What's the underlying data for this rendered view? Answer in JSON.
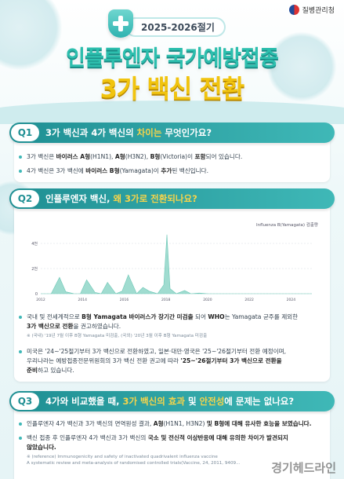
{
  "header": {
    "org": "질병관리청",
    "season": "2025-2026절기",
    "title_line1": "인플루엔자 국가예방접종",
    "title_line2": "3가 백신 전환"
  },
  "q1": {
    "badge": "Q1",
    "q_pre": "3가 백신과 4가 백신의 ",
    "q_hl": "차이는",
    "q_post": " 무엇인가요?",
    "b1_a": "3가 백신은 ",
    "b1_b": "바이러스 A형",
    "b1_c": "(H1N1), ",
    "b1_d": "A형",
    "b1_e": "(H3N2), ",
    "b1_f": "B형",
    "b1_g": "(Victoria)이 ",
    "b1_h": "포함",
    "b1_i": "되어 있습니다.",
    "b2_a": "4가 백신은 3가 백신에 ",
    "b2_b": "바이러스 B형",
    "b2_c": "(Yamagata)이 ",
    "b2_d": "추가",
    "b2_e": "된 백신입니다."
  },
  "q2": {
    "badge": "Q2",
    "q_pre": "인플루엔자 백신, ",
    "q_hl": "왜 3가로 전환되나요?",
    "b1_a": "국내 및 전세계적으로 ",
    "b1_b": "B형 Yamagata 바이러스가 장기간 미검출",
    "b1_c": " 되어 ",
    "b1_d": "WHO",
    "b1_e": "는 Yamagata 균주를 제외한",
    "b1_f": "3가 백신으로 전환",
    "b1_g": "을 권고하였습니다.",
    "note1": "※ (국내) '19년 7월 이후 B형 Yamagata 미검출, (국외) '20년 3월 이후 B형 Yamagata 미검출",
    "b2_line1": "미국은 '24~'25절기부터 3가 백신으로 전환하였고, 일본·대만·영국은 '25~'26절기부터 전환 예정이며,",
    "b2_line2a": "우리나라는 예방접종전문위원회의 3가 백신 전환 권고에 따라 ",
    "b2_line2b": "'25~'26절기부터 3가 백신으로 전환을",
    "b2_line3": "준비",
    "b2_line3b": "하고 있습니다."
  },
  "q3": {
    "badge": "Q3",
    "q_pre": "4가와 비교했을 때, ",
    "q_hl1": "3가 백신의 효과",
    "q_mid": " 및 ",
    "q_hl2": "안전성",
    "q_post": "에 문제는 없나요?",
    "b1_a": "인플루엔자 4가 백신과 3가 백신의 면역원성 결과, ",
    "b1_b": "A형",
    "b1_c": "(H1N1, H3N2) ",
    "b1_d": "및 B형에 대해 유사한 효능을 보였습니다.",
    "b2_a": "백신 접종 후 인플루엔자 4가 백신과 3가 백신의 ",
    "b2_b": "국소 및 전신적 이상반응에 대해 유의한 차이가 발견되지",
    "b2_c": "않았습니다.",
    "note1": "※ (reference) Immunogenicity and safety of inactivated quadrivalent influenza vaccine",
    "note2": "A systematic review and meta-analysis of randomised controlled trials(Vaccine, 24, 2011, 9409..."
  },
  "watermark": "경기헤드라인",
  "colors": {
    "teal": "#2dbfae",
    "yellow": "#f1c40f",
    "bar": "#1f8f93",
    "chart": "#8fd6c8"
  },
  "chart_data": {
    "type": "area",
    "title": "Influenza B(Yamagata) 검출량",
    "xlabel": "",
    "ylabel": "",
    "x_ticks": [
      "2012",
      "2014",
      "2016",
      "2018",
      "2020",
      "2022",
      "2024"
    ],
    "y_ticks": [
      "0",
      "2천",
      "4천"
    ],
    "ylim": [
      0,
      5000
    ],
    "xlim": [
      2012,
      2025
    ],
    "series": [
      {
        "name": "",
        "x": [
          2012.0,
          2012.5,
          2012.9,
          2013.2,
          2013.6,
          2013.9,
          2014.2,
          2014.6,
          2014.9,
          2015.2,
          2015.6,
          2015.9,
          2016.2,
          2016.6,
          2016.9,
          2017.2,
          2017.6,
          2017.9,
          2018.05,
          2018.2,
          2018.5,
          2018.9,
          2019.2,
          2019.6,
          2020.0,
          2020.5,
          2021,
          2022,
          2023,
          2024,
          2025
        ],
        "y": [
          0,
          0,
          1300,
          150,
          0,
          0,
          1100,
          100,
          0,
          900,
          0,
          200,
          1500,
          0,
          500,
          200,
          0,
          700,
          4700,
          400,
          0,
          250,
          0,
          50,
          0,
          0,
          0,
          0,
          0,
          0,
          0
        ]
      }
    ]
  }
}
